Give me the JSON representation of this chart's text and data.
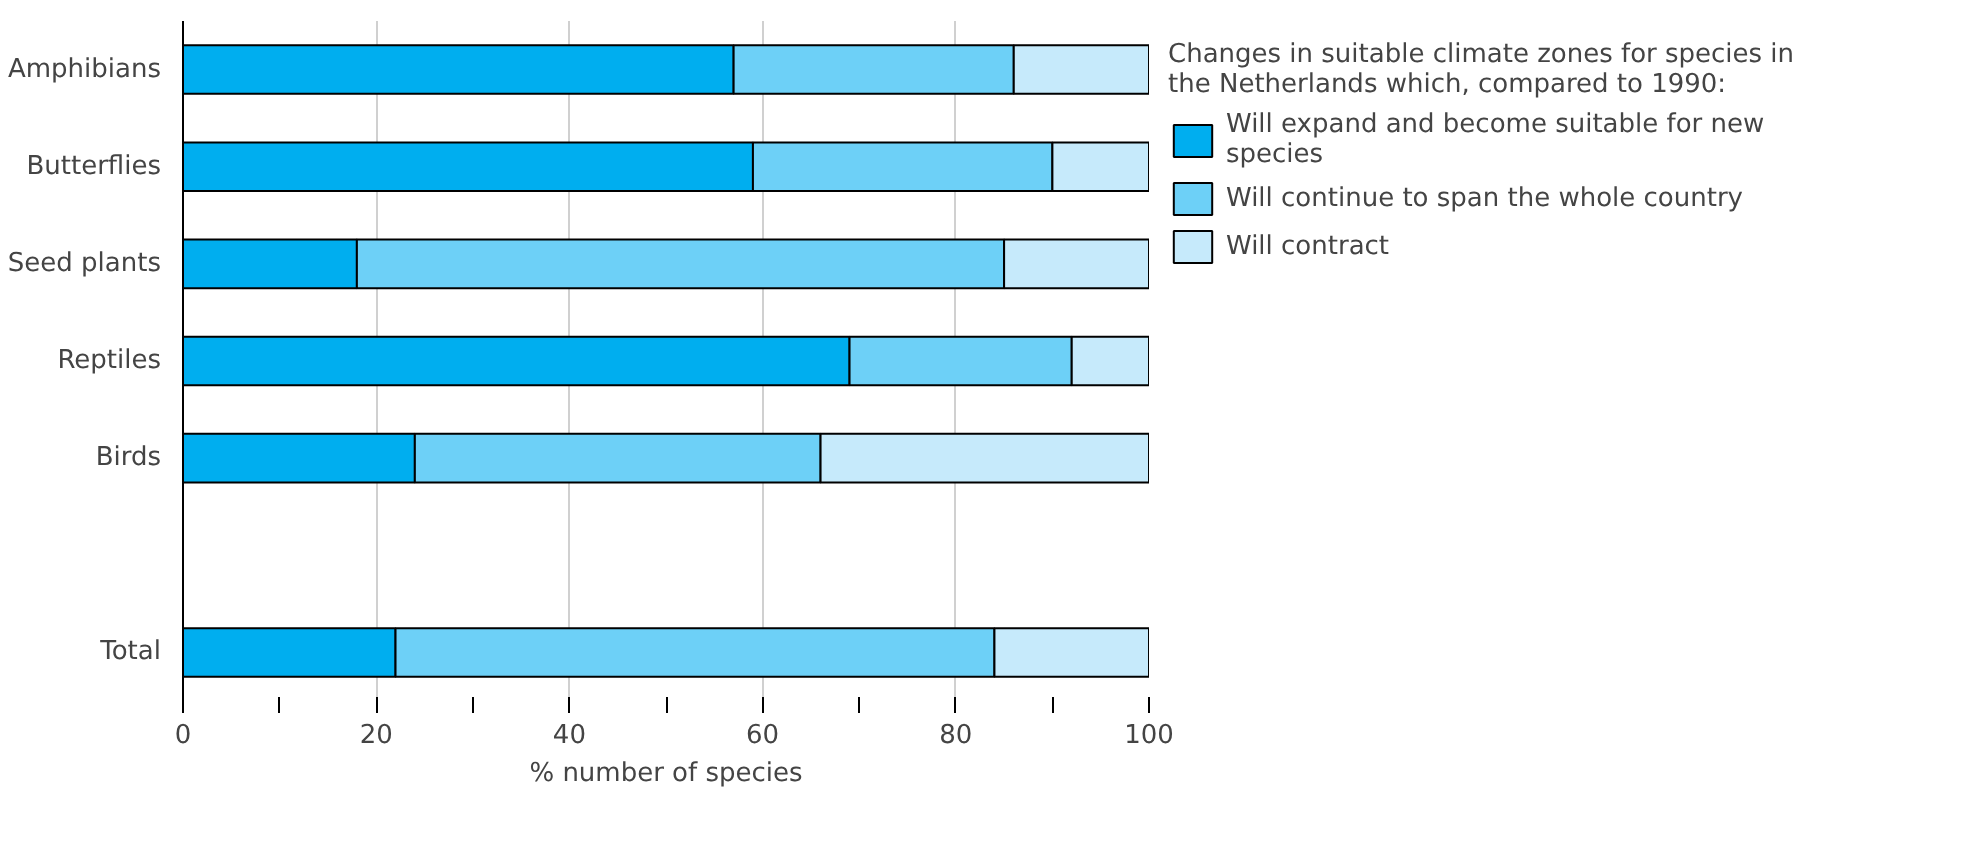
{
  "chart_data": {
    "type": "bar",
    "orientation": "horizontal",
    "stacked": true,
    "categories": [
      "Amphibians",
      "Butterflies",
      "Seed plants",
      "Reptiles",
      "Birds",
      null,
      "Total"
    ],
    "series": [
      {
        "name": "Will expand and become suitable for new species",
        "color": "#00aeef",
        "values": [
          57,
          59,
          18,
          69,
          24,
          null,
          22
        ]
      },
      {
        "name": "Will continue to span the whole country",
        "color": "#6dd0f7",
        "values": [
          29,
          31,
          67,
          23,
          42,
          null,
          62
        ]
      },
      {
        "name": "Will contract",
        "color": "#c6eafb",
        "values": [
          14,
          10,
          15,
          8,
          34,
          null,
          16
        ]
      }
    ],
    "xlim": [
      0,
      100
    ],
    "xticks": [
      0,
      {
        "value": 10,
        "label": null
      },
      20,
      {
        "value": 30,
        "label": null
      },
      40,
      {
        "value": 50,
        "label": null
      },
      60,
      {
        "value": 70,
        "label": null
      },
      80,
      {
        "value": 90,
        "label": null
      },
      100
    ],
    "xlabel": "% number of species",
    "legend_title": "Changes in suitable climate zones for species in the Netherlands which, compared to 1990:",
    "legend": "right",
    "grid": "x"
  }
}
